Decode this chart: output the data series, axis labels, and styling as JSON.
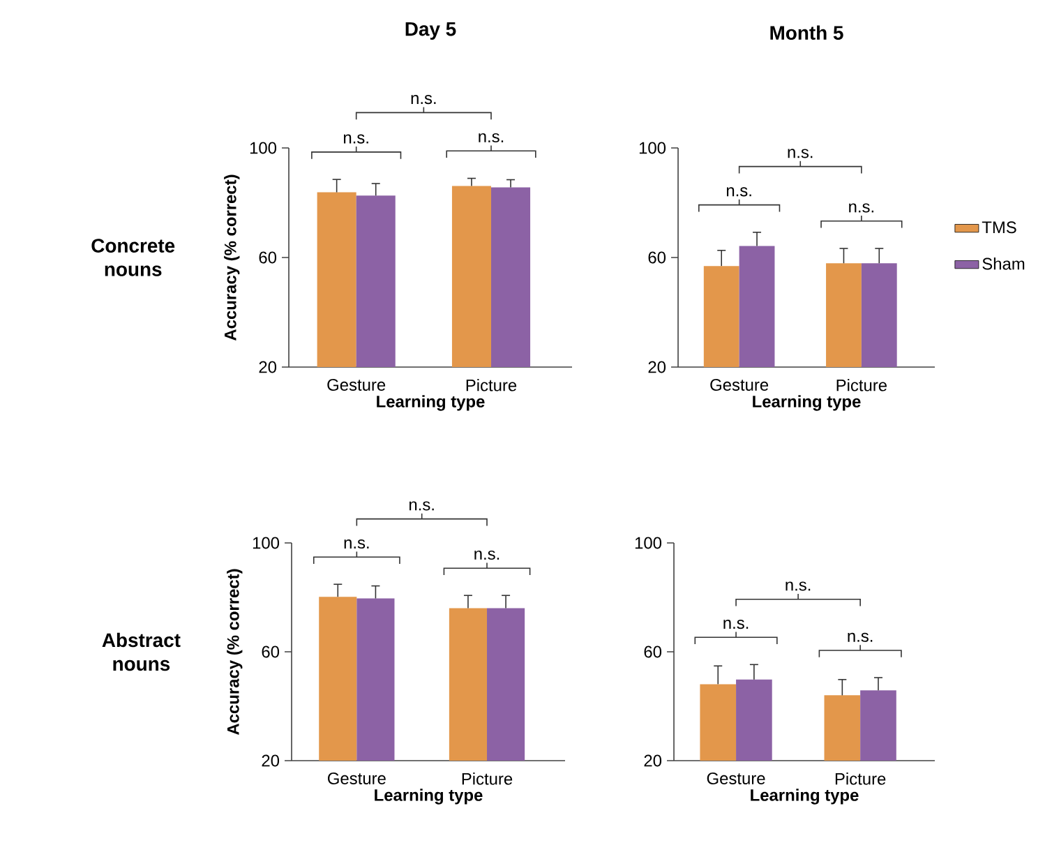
{
  "chart_data": [
    {
      "type": "bar",
      "title": "Day 5",
      "xlabel": "Learning type",
      "ylabel": "Accuracy (% correct)",
      "categories": [
        "Gesture",
        "Picture"
      ],
      "series": [
        {
          "color": "#e3974b",
          "values": [
            83.8,
            86.1
          ],
          "errors": [
            4.7,
            2.8
          ]
        },
        {
          "color": "#8c62a5",
          "values": [
            82.6,
            85.6
          ],
          "errors": [
            4.4,
            2.8
          ]
        }
      ],
      "ylim": [
        20,
        100
      ],
      "yticks": [
        20,
        60,
        100
      ],
      "annotations": [
        "n.s.",
        "n.s.",
        "n.s.",
        "Concrete nouns"
      ]
    },
    {
      "type": "bar",
      "title": "Month 5",
      "xlabel": "Learning type",
      "categories": [
        "Gesture",
        "Picture"
      ],
      "series": [
        {
          "name": "TMS",
          "color": "#e3974b",
          "values": [
            56.9,
            57.9
          ],
          "errors": [
            5.7,
            5.4
          ]
        },
        {
          "name": "Sham",
          "color": "#8c62a5",
          "values": [
            64.2,
            57.9
          ],
          "errors": [
            5.0,
            5.4
          ]
        }
      ],
      "ylim": [
        20,
        100
      ],
      "yticks": [
        20,
        60,
        100
      ],
      "legend": "right",
      "annotations": [
        "n.s.",
        "n.s.",
        "n.s."
      ]
    },
    {
      "type": "bar",
      "xlabel": "Learning type",
      "ylabel": "Accuracy (% correct)",
      "categories": [
        "Gesture",
        "Picture"
      ],
      "series": [
        {
          "color": "#e3974b",
          "values": [
            80.2,
            76.0
          ],
          "errors": [
            4.6,
            4.7
          ]
        },
        {
          "color": "#8c62a5",
          "values": [
            79.6,
            76.0
          ],
          "errors": [
            4.6,
            4.7
          ]
        }
      ],
      "ylim": [
        20,
        100
      ],
      "yticks": [
        20,
        60,
        100
      ],
      "annotations": [
        "n.s.",
        "n.s.",
        "n.s.",
        "Abstract nouns"
      ]
    },
    {
      "type": "bar",
      "xlabel": "Learning type",
      "categories": [
        "Gesture",
        "Picture"
      ],
      "series": [
        {
          "color": "#e3974b",
          "values": [
            48.1,
            44.0
          ],
          "errors": [
            6.7,
            5.8
          ]
        },
        {
          "color": "#8c62a5",
          "values": [
            49.8,
            45.8
          ],
          "errors": [
            5.5,
            4.7
          ]
        }
      ],
      "ylim": [
        20,
        100
      ],
      "yticks": [
        20,
        60,
        100
      ],
      "annotations": [
        "n.s.",
        "n.s.",
        "n.s."
      ]
    }
  ]
}
